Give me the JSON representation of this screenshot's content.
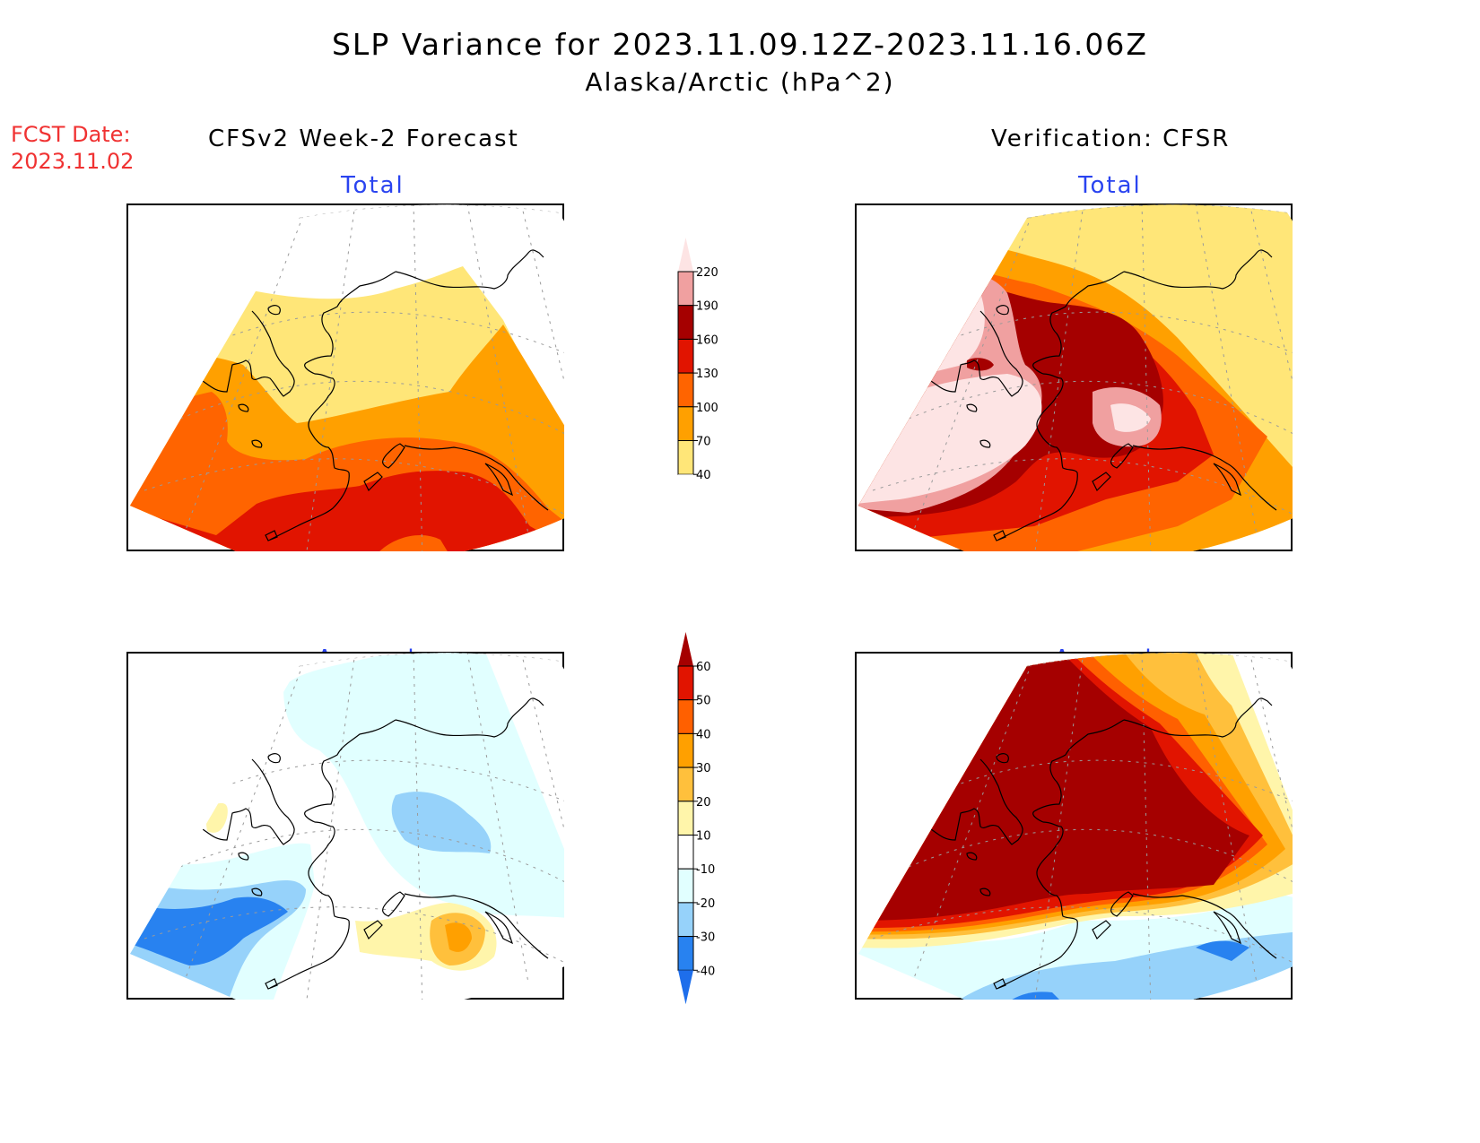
{
  "header": {
    "title": "SLP Variance for 2023.11.09.12Z-2023.11.16.06Z",
    "subtitle": "Alaska/Arctic (hPa^2)"
  },
  "forecast_date": {
    "label": "FCST Date:",
    "value": "2023.11.02"
  },
  "columns": {
    "left": "CFSv2 Week-2 Forecast",
    "right": "Verification: CFSR"
  },
  "panels": {
    "top_left": {
      "subtitle": "Total"
    },
    "top_right": {
      "subtitle": "Total"
    },
    "bottom_left": {
      "subtitle": "Anomaly"
    },
    "bottom_right": {
      "subtitle": "Anomaly"
    }
  },
  "colors": {
    "subtitle": "#2a44f0",
    "fcst_date": "#f03232"
  },
  "chart_data": [
    {
      "type": "heatmap",
      "name": "total-colorbar",
      "levels": [
        "40",
        "70",
        "100",
        "130",
        "160",
        "190",
        "220"
      ],
      "colors": [
        "#ffe678",
        "#ffa000",
        "#ff6400",
        "#e11400",
        "#a50000",
        "#f0a0a0",
        "#fde4e4"
      ],
      "extend": "both",
      "unit": "hPa^2"
    },
    {
      "type": "heatmap",
      "name": "anomaly-colorbar",
      "levels": [
        "-40",
        "-30",
        "-20",
        "-10",
        "10",
        "20",
        "30",
        "40",
        "50",
        "60"
      ],
      "colors": [
        "#1e6eeb",
        "#2882f0",
        "#96d2fa",
        "#e1ffff",
        "#ffffff",
        "#fff5aa",
        "#ffc03c",
        "#ffa000",
        "#ff6000",
        "#e11400",
        "#a50000"
      ],
      "extend": "both",
      "unit": "hPa^2"
    }
  ]
}
